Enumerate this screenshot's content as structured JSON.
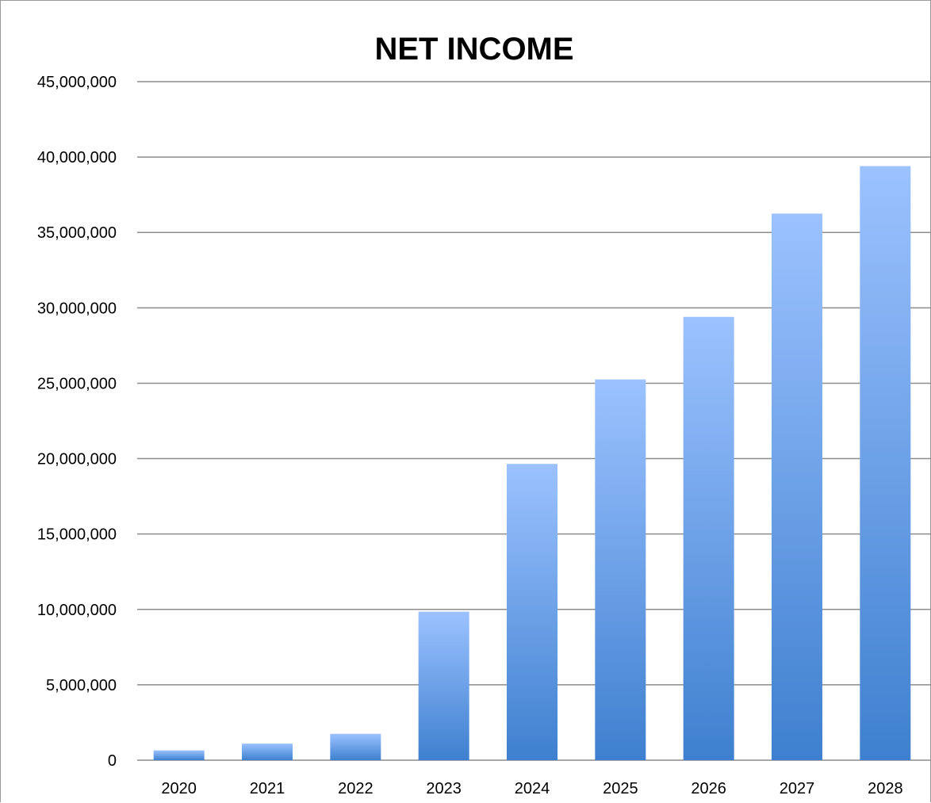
{
  "chart_data": {
    "type": "bar",
    "title": "NET INCOME",
    "xlabel": "",
    "ylabel": "",
    "categories": [
      "2020",
      "2021",
      "2022",
      "2023",
      "2024",
      "2025",
      "2026",
      "2027",
      "2028"
    ],
    "values": [
      650000,
      1100000,
      1750000,
      9850000,
      19650000,
      25250000,
      29400000,
      36250000,
      39400000
    ],
    "ylim": [
      0,
      45000000
    ],
    "y_ticks": [
      0,
      5000000,
      10000000,
      15000000,
      20000000,
      25000000,
      30000000,
      35000000,
      40000000,
      45000000
    ],
    "y_tick_labels": [
      "0",
      "5,000,000",
      "10,000,000",
      "15,000,000",
      "20,000,000",
      "25,000,000",
      "30,000,000",
      "35,000,000",
      "40,000,000",
      "45,000,000"
    ],
    "grid": true,
    "legend": "none",
    "colors": {
      "bar_top": "#9cc2ff",
      "bar_bottom": "#3e80cf",
      "gridline": "#8c8c8c",
      "text": "#000000"
    }
  }
}
